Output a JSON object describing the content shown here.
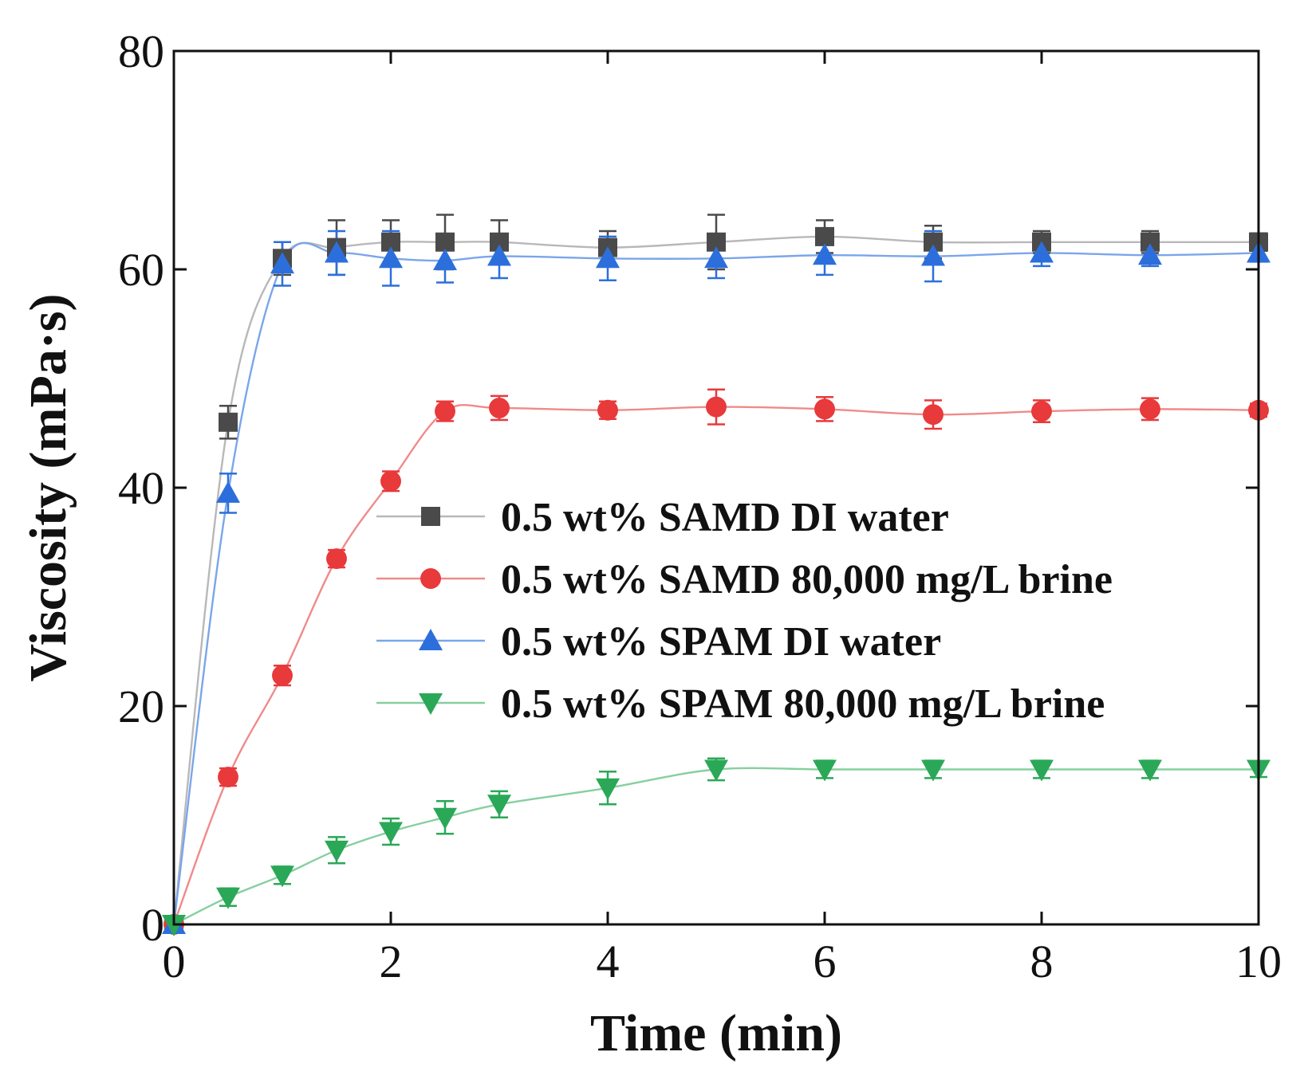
{
  "chart_data": {
    "type": "line",
    "xlabel": "Time (min)",
    "ylabel": "Viscosity (mPa·s)",
    "xlim": [
      0,
      10
    ],
    "ylim": [
      0,
      80
    ],
    "xticks": [
      0,
      2,
      4,
      6,
      8,
      10
    ],
    "yticks": [
      0,
      20,
      40,
      60,
      80
    ],
    "grid": false,
    "legend_position": "center-right",
    "series": [
      {
        "name": "0.5 wt% SAMD DI water",
        "marker": "square",
        "color": "#4a4a4a",
        "line_color": "#b8b8b8",
        "x": [
          0,
          0.5,
          1,
          1.5,
          2,
          2.5,
          3,
          4,
          5,
          6,
          7,
          8,
          9,
          10
        ],
        "y": [
          0,
          46,
          61,
          62,
          62.5,
          62.5,
          62.5,
          62,
          62.5,
          63,
          62.5,
          62.5,
          62.5,
          62.5
        ],
        "err": [
          0,
          1.5,
          1.5,
          2.5,
          2,
          2.5,
          2,
          1.5,
          2.5,
          1.5,
          1.5,
          1,
          1,
          0.8
        ]
      },
      {
        "name": "0.5 wt% SAMD 80,000 mg/L brine",
        "marker": "circle",
        "color": "#e8393b",
        "line_color": "#f08a8a",
        "x": [
          0,
          0.5,
          1,
          1.5,
          2,
          2.5,
          3,
          4,
          5,
          6,
          7,
          8,
          9,
          10
        ],
        "y": [
          0,
          13.5,
          22.8,
          33.5,
          40.6,
          47,
          47.3,
          47.1,
          47.4,
          47.2,
          46.7,
          47,
          47.2,
          47.1
        ],
        "err": [
          0,
          0.8,
          0.9,
          0.8,
          0.9,
          0.9,
          1.1,
          0.8,
          1.6,
          1.1,
          1.3,
          1,
          1,
          0.6
        ]
      },
      {
        "name": "0.5 wt% SPAM DI water",
        "marker": "triangle-up",
        "color": "#2c6fdc",
        "line_color": "#7aa6ea",
        "x": [
          0,
          0.5,
          1,
          1.5,
          2,
          2.5,
          3,
          4,
          5,
          6,
          7,
          8,
          9,
          10
        ],
        "y": [
          0,
          39.5,
          60.5,
          61.5,
          61,
          60.8,
          61.2,
          61,
          61,
          61.3,
          61.2,
          61.5,
          61.3,
          61.5
        ],
        "err": [
          0,
          1.8,
          2,
          2,
          2.5,
          2,
          2,
          2,
          1.8,
          1.8,
          2.3,
          1.2,
          1,
          0.8
        ]
      },
      {
        "name": "0.5 wt% SPAM 80,000 mg/L brine",
        "marker": "triangle-down",
        "color": "#2aa857",
        "line_color": "#86cf9f",
        "x": [
          0,
          0.5,
          1,
          1.5,
          2,
          2.5,
          3,
          4,
          5,
          6,
          7,
          8,
          9,
          10
        ],
        "y": [
          0,
          2.5,
          4.5,
          6.8,
          8.5,
          9.8,
          11,
          12.5,
          14.2,
          14.2,
          14.2,
          14.2,
          14.2,
          14.2
        ],
        "err": [
          0,
          0.8,
          0.8,
          1.2,
          1.2,
          1.5,
          1.2,
          1.5,
          1,
          0.8,
          0.8,
          0.8,
          0.8,
          0.7
        ]
      }
    ]
  }
}
